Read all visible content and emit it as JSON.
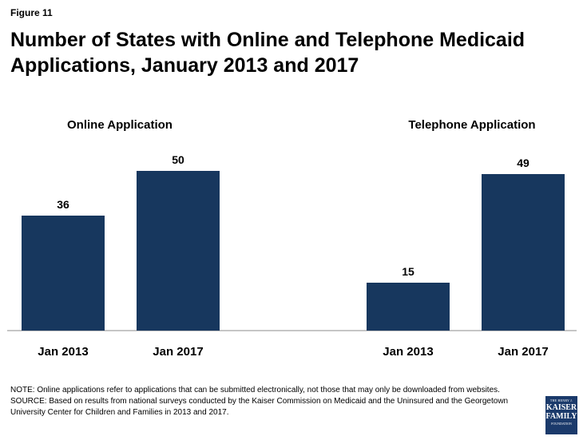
{
  "figure_label": "Figure 11",
  "title": "Number of States with Online and Telephone Medicaid Applications, January 2013 and 2017",
  "chart_data": [
    {
      "type": "bar",
      "title": "Online Application",
      "categories": [
        "Jan 2013",
        "Jan 2017"
      ],
      "values": [
        36,
        50
      ],
      "ylim": [
        0,
        50
      ],
      "grid": false,
      "color": "#17375e"
    },
    {
      "type": "bar",
      "title": "Telephone Application",
      "categories": [
        "Jan 2013",
        "Jan 2017"
      ],
      "values": [
        15,
        49
      ],
      "ylim": [
        0,
        50
      ],
      "grid": false,
      "color": "#17375e"
    }
  ],
  "notes": {
    "note": "NOTE: Online applications refer to applications that can be submitted electronically, not those that may only be downloaded from websites.",
    "source": "SOURCE: Based on results from national surveys conducted by the Kaiser Commission on Medicaid and the Uninsured and the Georgetown University Center for Children and Families in 2013 and 2017."
  },
  "logo": {
    "line1": "THE HENRY J.",
    "line2": "KAISER",
    "line3": "FAMILY",
    "line4": "FOUNDATION",
    "color": "#1b3a6b"
  }
}
